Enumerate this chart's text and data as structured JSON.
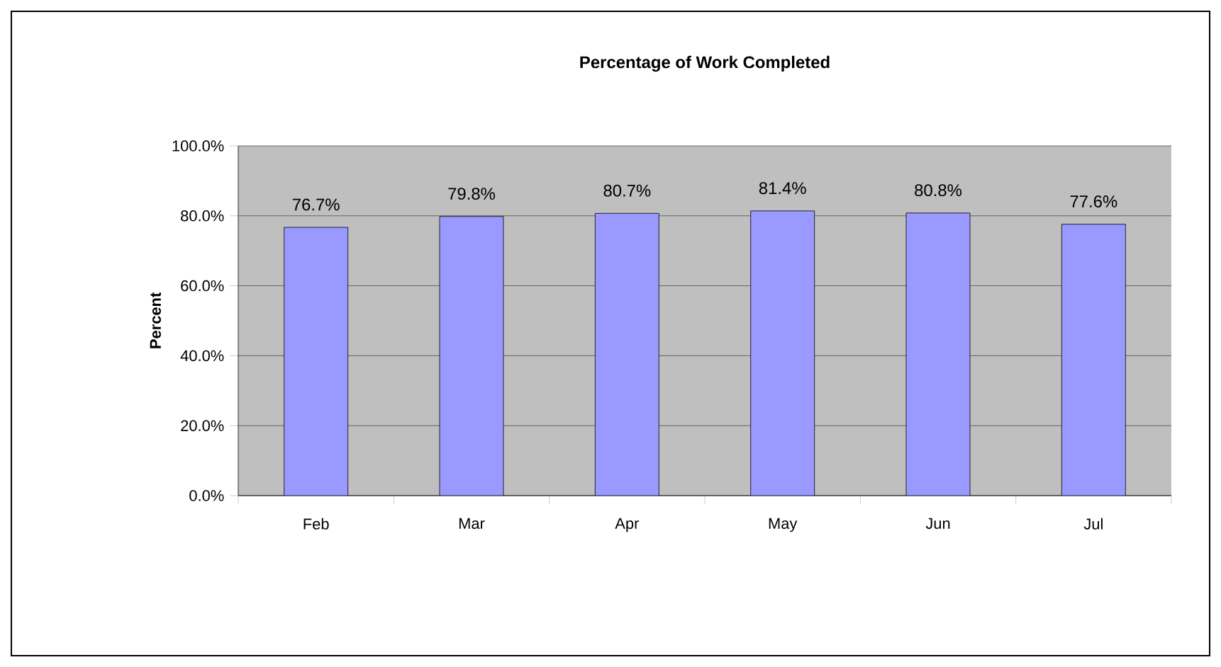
{
  "chart_data": {
    "type": "bar",
    "title": "Percentage of Work Completed",
    "ylabel": "Percent",
    "categories": [
      "Feb",
      "Mar",
      "Apr",
      "May",
      "Jun",
      "Jul"
    ],
    "values": [
      76.7,
      79.8,
      80.7,
      81.4,
      80.8,
      77.6
    ],
    "value_labels": [
      "76.7%",
      "79.8%",
      "80.7%",
      "81.4%",
      "80.8%",
      "77.6%"
    ],
    "color": "#9999ff",
    "ylim": [
      0,
      100
    ],
    "yticks": [
      {
        "value": 0,
        "label": "0.0%"
      },
      {
        "value": 20,
        "label": "20.0%"
      },
      {
        "value": 40,
        "label": "40.0%"
      },
      {
        "value": 60,
        "label": "60.0%"
      },
      {
        "value": 80,
        "label": "80.0%"
      },
      {
        "value": 100,
        "label": "100.0%"
      }
    ],
    "grid": "y"
  }
}
